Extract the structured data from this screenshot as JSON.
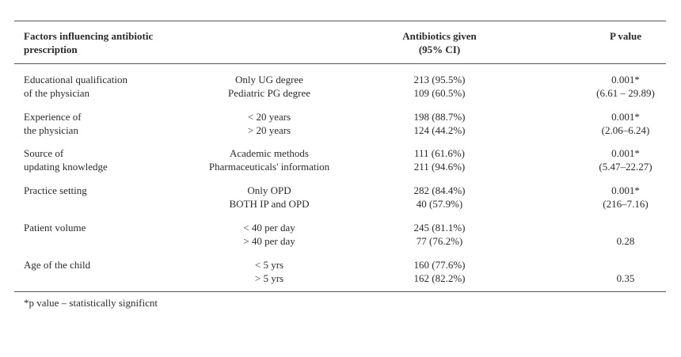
{
  "headers": {
    "factor": [
      "Factors influencing antibiotic",
      "prescription"
    ],
    "antibiotics": [
      "Antibiotics given",
      "(95% CI)"
    ],
    "pvalue": [
      "P value"
    ]
  },
  "rows": [
    {
      "factor": [
        "Educational qualification",
        "of the physician"
      ],
      "levels": [
        "Only UG degree",
        "Pediatric PG degree"
      ],
      "antibiotics": [
        "213 (95.5%)",
        "109 (60.5%)"
      ],
      "pvalue": [
        "0.001*",
        "(6.61 – 29.89)"
      ]
    },
    {
      "factor": [
        "Experience of",
        "the physician"
      ],
      "levels": [
        "< 20 years",
        "> 20 years"
      ],
      "antibiotics": [
        "198 (88.7%)",
        "124 (44.2%)"
      ],
      "pvalue": [
        "0.001*",
        "(2.06–6.24)"
      ]
    },
    {
      "factor": [
        "Source of",
        "updating knowledge"
      ],
      "levels": [
        "Academic methods",
        "Pharmaceuticals' information"
      ],
      "antibiotics": [
        "111 (61.6%)",
        "211 (94.6%)"
      ],
      "pvalue": [
        "0.001*",
        "(5.47–22.27)"
      ]
    },
    {
      "factor": [
        "Practice setting",
        ""
      ],
      "levels": [
        "Only OPD",
        "BOTH IP and OPD"
      ],
      "antibiotics": [
        "282 (84.4%)",
        "40 (57.9%)"
      ],
      "pvalue": [
        "0.001*",
        "(216–7.16)"
      ]
    },
    {
      "factor": [
        "Patient volume",
        ""
      ],
      "levels": [
        "< 40 per day",
        "> 40 per day"
      ],
      "antibiotics": [
        "245 (81.1%)",
        "77 (76.2%)"
      ],
      "pvalue": [
        "",
        "0.28"
      ]
    },
    {
      "factor": [
        "Age of the child",
        ""
      ],
      "levels": [
        "< 5 yrs",
        "> 5 yrs"
      ],
      "antibiotics": [
        "160 (77.6%)",
        "162 (82.2%)"
      ],
      "pvalue": [
        "",
        "0.35"
      ]
    }
  ],
  "footnote": "*p value – statistically significnt"
}
